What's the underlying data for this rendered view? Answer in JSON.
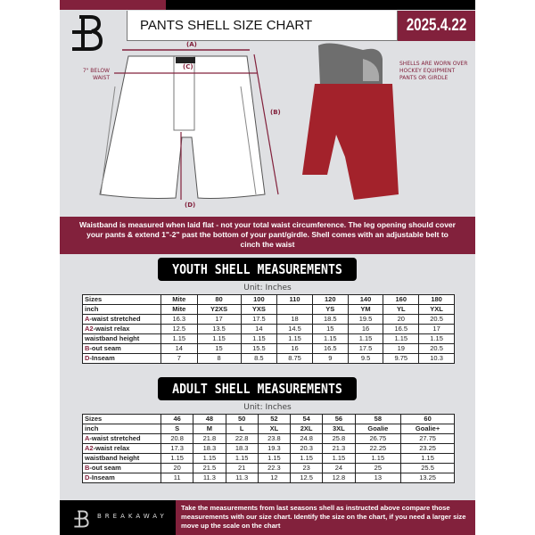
{
  "header": {
    "title": "PANTS SHELL SIZE CHART",
    "date": "2025.4.22",
    "brand_logo": "B"
  },
  "colors": {
    "maroon": "#82213c",
    "black": "#000000",
    "panel": "#dfe0e3",
    "pants_red": "#a3222b"
  },
  "diagram": {
    "label_a": "(A)",
    "label_b": "(B)",
    "label_c": "(C)",
    "label_d": "(D)",
    "below_waist": "7\" BELOW WAIST",
    "shells_note": "SHELLS ARE WORN OVER HOCKEY EQUIPMENT PANTS OR GIRDLE"
  },
  "info_text": "Waistband is measured when laid flat - not your total waist circumference. The leg opening should cover your pants & extend 1\"-2\" past the bottom of your pant/girdle. Shell comes with an adjustable belt to cinch the waist",
  "youth": {
    "title": "YOUTH SHELL MEASUREMENTS",
    "unit": "Unit: Inches",
    "rows": [
      {
        "mark": "",
        "label": "Sizes",
        "values": [
          "Mite",
          "80",
          "100",
          "110",
          "120",
          "140",
          "160",
          "180"
        ]
      },
      {
        "mark": "",
        "label": "inch",
        "values": [
          "Mite",
          "Y2XS",
          "YXS",
          "",
          "YS",
          "YM",
          "YL",
          "YXL"
        ]
      },
      {
        "mark": "A",
        "label": "-waist stretched",
        "values": [
          "16.3",
          "17",
          "17.5",
          "18",
          "18.5",
          "19.5",
          "20",
          "20.5"
        ]
      },
      {
        "mark": "A2",
        "label": "-waist relax",
        "values": [
          "12.5",
          "13.5",
          "14",
          "14.5",
          "15",
          "16",
          "16.5",
          "17"
        ]
      },
      {
        "mark": "",
        "label": "waistband height",
        "values": [
          "1.15",
          "1.15",
          "1.15",
          "1.15",
          "1.15",
          "1.15",
          "1.15",
          "1.15"
        ]
      },
      {
        "mark": "B",
        "label": "-out seam",
        "values": [
          "14",
          "15",
          "15.5",
          "16",
          "16.5",
          "17.5",
          "19",
          "20.5"
        ]
      },
      {
        "mark": "D",
        "label": "-Inseam",
        "values": [
          "7",
          "8",
          "8.5",
          "8.75",
          "9",
          "9.5",
          "9.75",
          "10.3"
        ]
      }
    ]
  },
  "adult": {
    "title": "ADULT SHELL MEASUREMENTS",
    "unit": "Unit: Inches",
    "rows": [
      {
        "mark": "",
        "label": "Sizes",
        "values": [
          "46",
          "48",
          "50",
          "52",
          "54",
          "56",
          "58",
          "60"
        ]
      },
      {
        "mark": "",
        "label": "inch",
        "values": [
          "S",
          "M",
          "L",
          "XL",
          "2XL",
          "3XL",
          "Goalie",
          "Goalie+"
        ]
      },
      {
        "mark": "A",
        "label": "-waist stretched",
        "values": [
          "20.8",
          "21.8",
          "22.8",
          "23.8",
          "24.8",
          "25.8",
          "26.75",
          "27.75"
        ]
      },
      {
        "mark": "A2",
        "label": "-waist relax",
        "values": [
          "17.3",
          "18.3",
          "18.3",
          "19.3",
          "20.3",
          "21.3",
          "22.25",
          "23.25"
        ]
      },
      {
        "mark": "",
        "label": "waistband height",
        "values": [
          "1.15",
          "1.15",
          "1.15",
          "1.15",
          "1.15",
          "1.15",
          "1.15",
          "1.15"
        ]
      },
      {
        "mark": "B",
        "label": "-out seam",
        "values": [
          "20",
          "21.5",
          "21",
          "22.3",
          "23",
          "24",
          "25",
          "25.5"
        ]
      },
      {
        "mark": "D",
        "label": "-Inseam",
        "values": [
          "11",
          "11.3",
          "11.3",
          "12",
          "12.5",
          "12.8",
          "13",
          "13.25"
        ]
      }
    ]
  },
  "footer": {
    "brand": "BREAKAWAY",
    "text": "Take the measurements from last seasons shell as instructed above compare those measurements  with our size chart. Identify the size on the chart, if you need a larger size move up the scale on the chart"
  }
}
